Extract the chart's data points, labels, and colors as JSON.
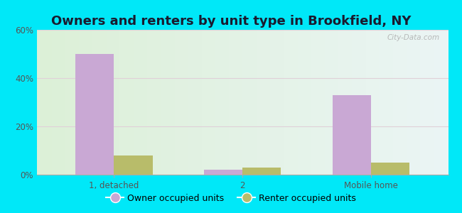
{
  "title": "Owners and renters by unit type in Brookfield, NY",
  "categories": [
    "1, detached",
    "2",
    "Mobile home"
  ],
  "owner_values": [
    50,
    2,
    33
  ],
  "renter_values": [
    8,
    3,
    5
  ],
  "owner_color": "#c9a8d4",
  "renter_color": "#b8bc6a",
  "ylim": [
    0,
    60
  ],
  "yticks": [
    0,
    20,
    40,
    60
  ],
  "ytick_labels": [
    "0%",
    "20%",
    "40%",
    "60%"
  ],
  "background_outer": "#00e8f8",
  "bar_width": 0.3,
  "legend_labels": [
    "Owner occupied units",
    "Renter occupied units"
  ],
  "watermark": "City-Data.com",
  "title_fontsize": 13,
  "tick_fontsize": 8.5,
  "legend_fontsize": 9
}
